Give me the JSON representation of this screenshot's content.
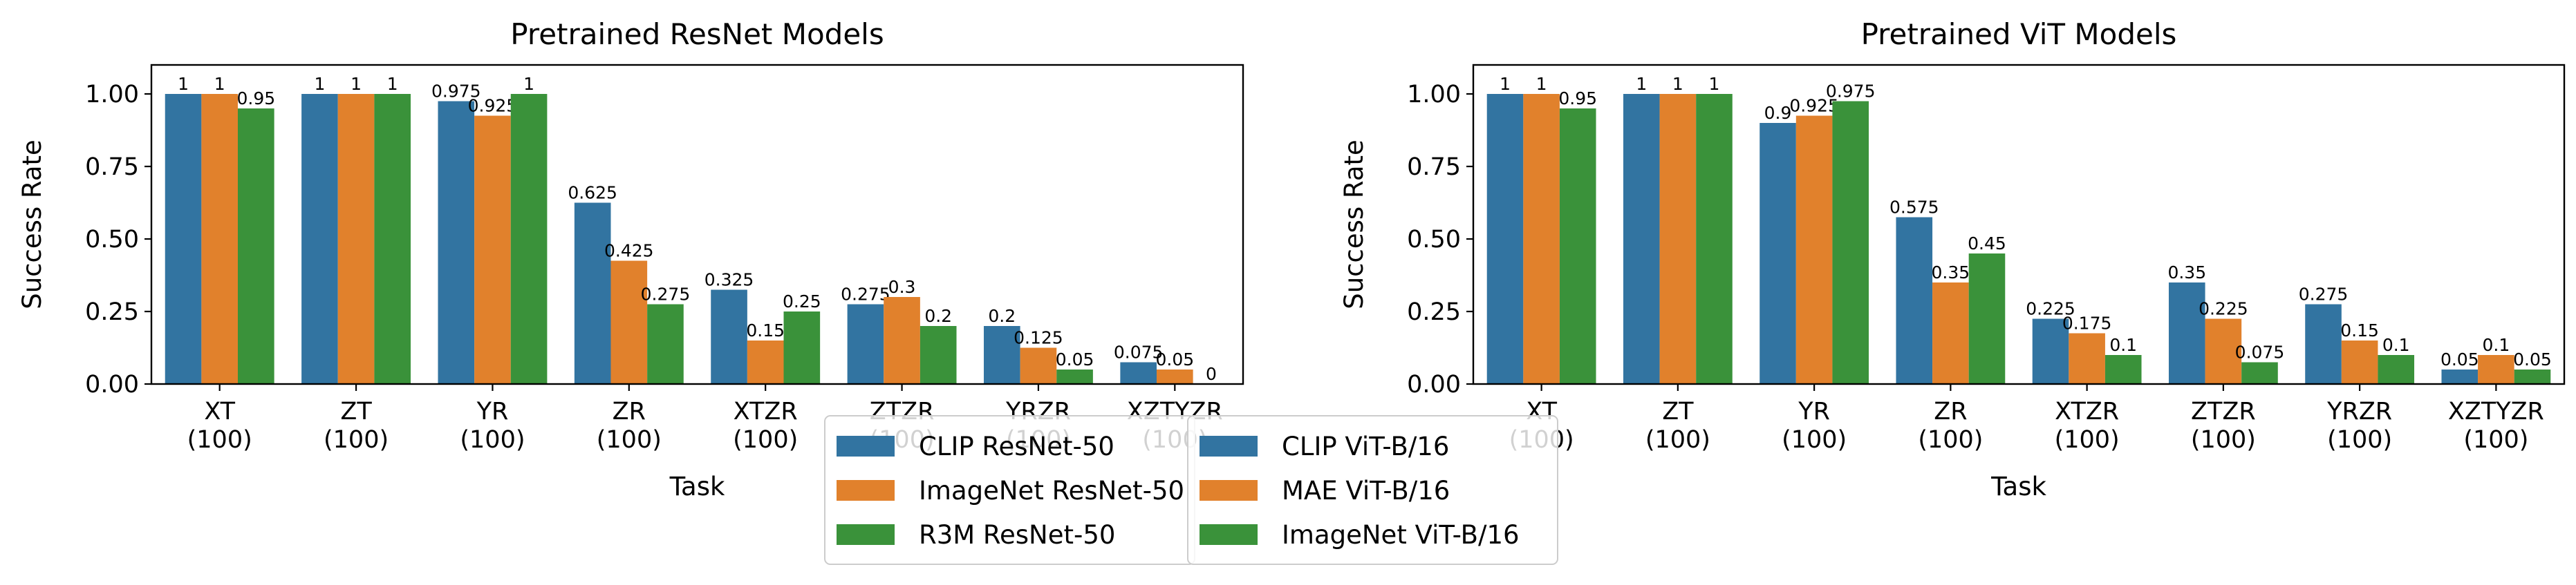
{
  "colors": {
    "blue": "#3274a1",
    "orange": "#e1812c",
    "green": "#3a923a"
  },
  "chart_data": [
    {
      "type": "bar",
      "title": "Pretrained ResNet Models",
      "xlabel": "Task",
      "ylabel": "Success Rate",
      "ylim": [
        0,
        1.1
      ],
      "yticks": [
        "0.00",
        "0.25",
        "0.50",
        "0.75",
        "1.00"
      ],
      "ytick_values": [
        0,
        0.25,
        0.5,
        0.75,
        1.0
      ],
      "categories": [
        "XT\n(100)",
        "ZT\n(100)",
        "YR\n(100)",
        "ZR\n(100)",
        "XTZR\n(100)",
        "ZTZR\n(100)",
        "YRZR\n(100)",
        "XZTYZR\n(100)"
      ],
      "series": [
        {
          "name": "CLIP ResNet-50",
          "color": "#3274a1",
          "values": [
            1,
            1,
            0.975,
            0.625,
            0.325,
            0.275,
            0.2,
            0.075
          ],
          "labels": [
            "1",
            "1",
            "0.975",
            "0.625",
            "0.325",
            "0.275",
            "0.2",
            "0.075"
          ]
        },
        {
          "name": "ImageNet ResNet-50",
          "color": "#e1812c",
          "values": [
            1,
            1,
            0.925,
            0.425,
            0.15,
            0.3,
            0.125,
            0.05
          ],
          "labels": [
            "1",
            "1",
            "0.925",
            "0.425",
            "0.15",
            "0.3",
            "0.125",
            "0.05"
          ]
        },
        {
          "name": "R3M ResNet-50",
          "color": "#3a923a",
          "values": [
            0.95,
            1,
            1,
            0.275,
            0.25,
            0.2,
            0.05,
            0
          ],
          "labels": [
            "0.95",
            "1",
            "1",
            "0.275",
            "0.25",
            "0.2",
            "0.05",
            "0"
          ]
        }
      ],
      "legend": "bottom-center",
      "grid": false
    },
    {
      "type": "bar",
      "title": "Pretrained ViT Models",
      "xlabel": "Task",
      "ylabel": "Success Rate",
      "ylim": [
        0,
        1.1
      ],
      "yticks": [
        "0.00",
        "0.25",
        "0.50",
        "0.75",
        "1.00"
      ],
      "ytick_values": [
        0,
        0.25,
        0.5,
        0.75,
        1.0
      ],
      "categories": [
        "XT\n(100)",
        "ZT\n(100)",
        "YR\n(100)",
        "ZR\n(100)",
        "XTZR\n(100)",
        "ZTZR\n(100)",
        "YRZR\n(100)",
        "XZTYZR\n(100)"
      ],
      "series": [
        {
          "name": "CLIP ViT-B/16",
          "color": "#3274a1",
          "values": [
            1,
            1,
            0.9,
            0.575,
            0.225,
            0.35,
            0.275,
            0.05
          ],
          "labels": [
            "1",
            "1",
            "0.9",
            "0.575",
            "0.225",
            "0.35",
            "0.275",
            "0.05"
          ]
        },
        {
          "name": "MAE ViT-B/16",
          "color": "#e1812c",
          "values": [
            1,
            1,
            0.925,
            0.35,
            0.175,
            0.225,
            0.15,
            0.1
          ],
          "labels": [
            "1",
            "1",
            "0.925",
            "0.35",
            "0.175",
            "0.225",
            "0.15",
            "0.1"
          ]
        },
        {
          "name": "ImageNet ViT-B/16",
          "color": "#3a923a",
          "values": [
            0.95,
            1,
            0.975,
            0.45,
            0.1,
            0.075,
            0.1,
            0.05
          ],
          "labels": [
            "0.95",
            "1",
            "0.975",
            "0.45",
            "0.1",
            "0.075",
            "0.1",
            "0.05"
          ]
        }
      ],
      "legend": "bottom-center",
      "grid": false
    }
  ]
}
